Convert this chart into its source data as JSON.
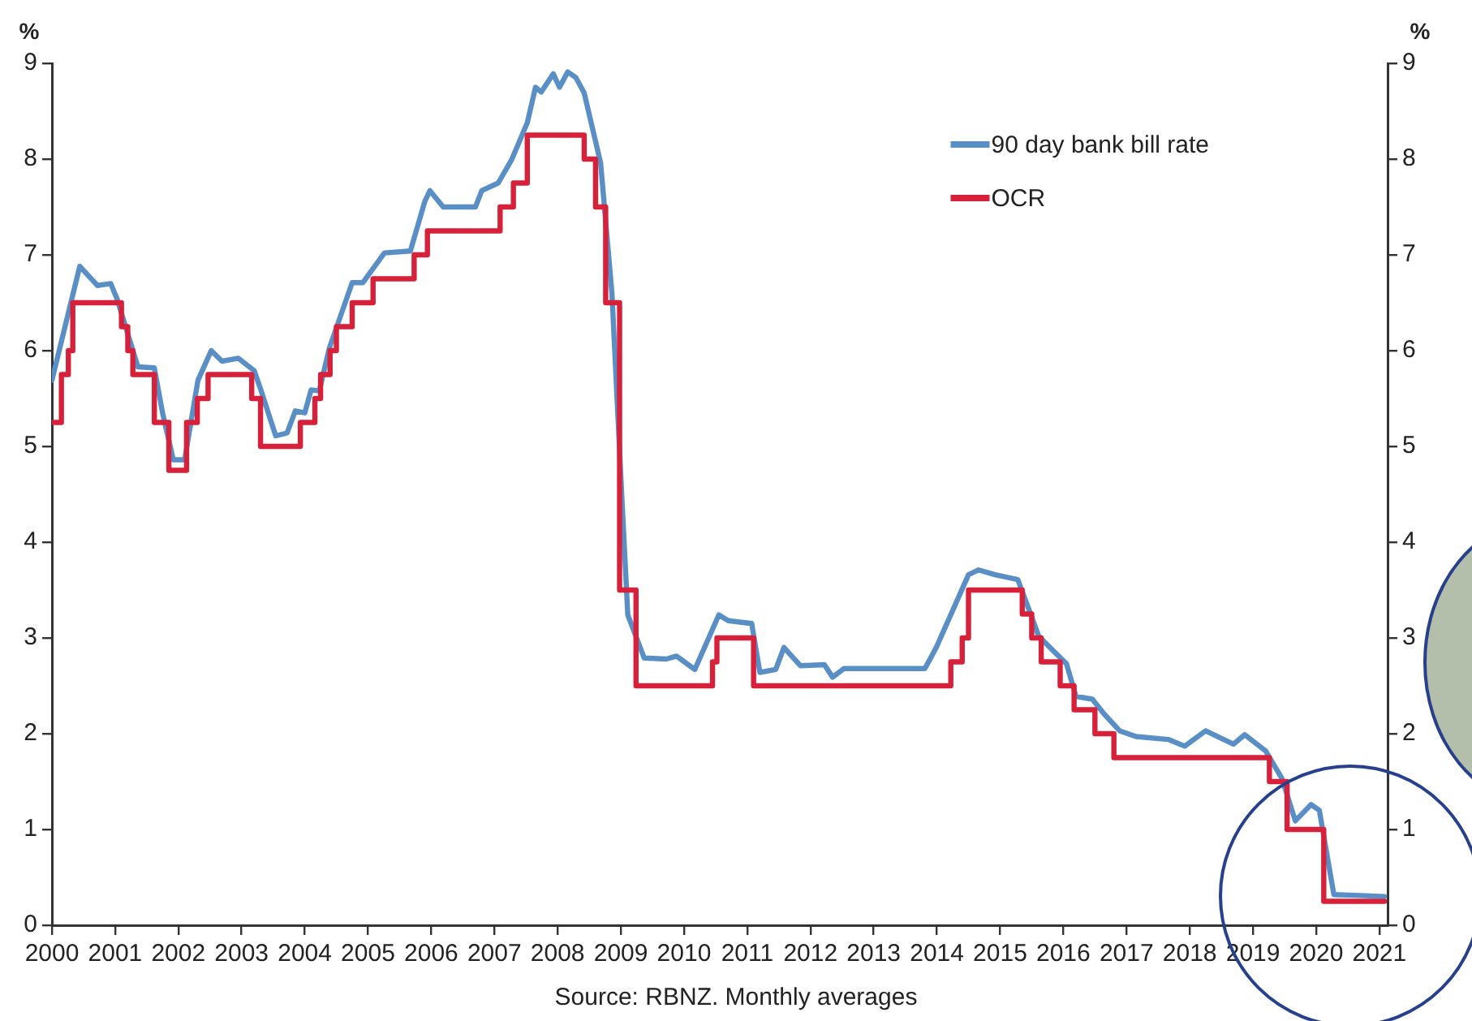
{
  "chart_data": {
    "type": "line",
    "ylabel": "%",
    "y2label": "%",
    "annotations": [
      "Source: RBNZ. Monthly averages"
    ],
    "xlim": [
      2000,
      2021.13
    ],
    "xticks": [
      2000,
      2001,
      2002,
      2003,
      2004,
      2005,
      2006,
      2007,
      2008,
      2009,
      2010,
      2011,
      2012,
      2013,
      2014,
      2015,
      2016,
      2017,
      2018,
      2019,
      2020,
      2021
    ],
    "ylim": [
      0,
      9
    ],
    "yticks": [
      0,
      1,
      2,
      3,
      4,
      5,
      6,
      7,
      8,
      9
    ],
    "y2lim": [
      0,
      9
    ],
    "y2ticks": [
      0,
      1,
      2,
      3,
      4,
      5,
      6,
      7,
      8,
      9
    ],
    "legend": "top right",
    "grid": false,
    "marker": "none",
    "line_style": "solid",
    "series": [
      {
        "name": "OCR",
        "type": "step",
        "color": "#d7213a",
        "x": [
          2000,
          2000.15,
          2000.26,
          2000.33,
          2001.1,
          2001.2,
          2001.28,
          2001.62,
          2001.85,
          2002.13,
          2002.3,
          2002.47,
          2003.16,
          2003.3,
          2003.43,
          2003.93,
          2004.16,
          2004.25,
          2004.4,
          2004.5,
          2004.75,
          2005.08,
          2005.73,
          2005.94,
          2007.09,
          2007.3,
          2007.52,
          2008.42,
          2008.6,
          2008.76,
          2008.98,
          2009.24,
          2010.45,
          2010.52,
          2011.1,
          2014.12,
          2014.22,
          2014.4,
          2014.5,
          2015.35,
          2015.5,
          2015.65,
          2015.95,
          2016.17,
          2016.5,
          2016.8,
          2019.26,
          2019.54,
          2020.12,
          2021.08
        ],
        "values": [
          5.25,
          5.75,
          6.0,
          6.5,
          6.25,
          6.0,
          5.75,
          5.25,
          4.75,
          5.25,
          5.5,
          5.75,
          5.5,
          5.0,
          5.0,
          5.25,
          5.5,
          5.75,
          6.0,
          6.25,
          6.5,
          6.75,
          7.0,
          7.25,
          7.5,
          7.75,
          8.25,
          8.0,
          7.5,
          6.5,
          3.5,
          2.5,
          2.75,
          3.0,
          2.5,
          2.5,
          2.75,
          3.0,
          3.5,
          3.25,
          3.0,
          2.75,
          2.5,
          2.25,
          2.0,
          1.75,
          1.5,
          1.0,
          0.25,
          0.25
        ]
      },
      {
        "name": "90 day bank bill rate",
        "type": "line",
        "color": "#5a8fc6",
        "x": [
          2000,
          2000.44,
          2000.72,
          2000.93,
          2001.03,
          2001.36,
          2001.62,
          2001.75,
          2001.92,
          2002.1,
          2002.31,
          2002.52,
          2002.69,
          2002.95,
          2003.2,
          2003.29,
          2003.54,
          2003.72,
          2003.85,
          2004.0,
          2004.1,
          2004.23,
          2004.39,
          2004.75,
          2004.92,
          2005.26,
          2005.67,
          2005.9,
          2005.98,
          2006.19,
          2006.7,
          2006.8,
          2007.06,
          2007.27,
          2007.52,
          2007.65,
          2007.74,
          2007.93,
          2008.03,
          2008.16,
          2008.29,
          2008.42,
          2008.68,
          2008.86,
          2009.01,
          2009.11,
          2009.37,
          2009.72,
          2009.88,
          2010.17,
          2010.55,
          2010.7,
          2011.07,
          2011.2,
          2011.45,
          2011.58,
          2011.84,
          2012.22,
          2012.35,
          2012.53,
          2013.04,
          2013.81,
          2013.99,
          2014.5,
          2014.66,
          2014.92,
          2015.28,
          2015.61,
          2015.82,
          2016.05,
          2016.2,
          2016.46,
          2016.64,
          2016.89,
          2017.15,
          2017.66,
          2017.92,
          2018.25,
          2018.69,
          2018.87,
          2019.2,
          2019.46,
          2019.67,
          2019.92,
          2020.05,
          2020.28,
          2020.7,
          2021.08
        ],
        "values": [
          5.69,
          6.88,
          6.68,
          6.7,
          6.54,
          5.83,
          5.82,
          5.35,
          4.86,
          4.86,
          5.69,
          6.0,
          5.89,
          5.92,
          5.79,
          5.62,
          5.11,
          5.14,
          5.37,
          5.35,
          5.59,
          5.58,
          6.03,
          6.71,
          6.71,
          7.02,
          7.04,
          7.56,
          7.67,
          7.5,
          7.5,
          7.67,
          7.75,
          7.99,
          8.38,
          8.75,
          8.7,
          8.89,
          8.75,
          8.91,
          8.85,
          8.69,
          7.96,
          6.59,
          4.55,
          3.24,
          2.79,
          2.78,
          2.81,
          2.67,
          3.24,
          3.18,
          3.15,
          2.64,
          2.67,
          2.9,
          2.71,
          2.72,
          2.59,
          2.68,
          2.68,
          2.68,
          2.9,
          3.66,
          3.71,
          3.66,
          3.61,
          3.02,
          2.88,
          2.73,
          2.39,
          2.36,
          2.21,
          2.03,
          1.97,
          1.94,
          1.87,
          2.03,
          1.89,
          1.99,
          1.82,
          1.53,
          1.09,
          1.26,
          1.2,
          0.32,
          0.31,
          0.3
        ]
      }
    ]
  }
}
